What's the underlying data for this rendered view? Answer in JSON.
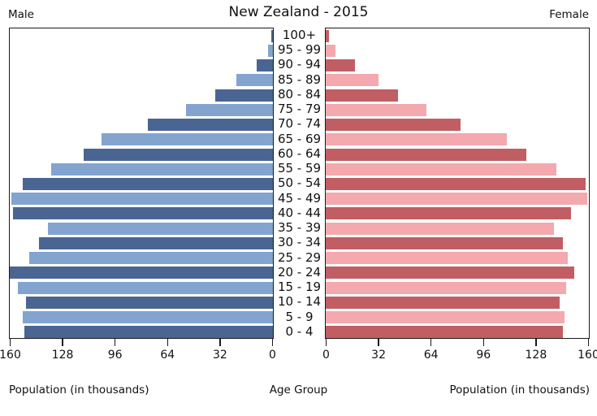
{
  "title": "New Zealand - 2015",
  "headers": {
    "male": "Male",
    "female": "Female"
  },
  "captions": {
    "left": "Population (in thousands)",
    "center": "Age Group",
    "right": "Population (in thousands)"
  },
  "chart_data": {
    "type": "bar",
    "subtype": "population-pyramid",
    "title": "New Zealand - 2015",
    "categories": [
      "100+",
      "95 - 99",
      "90 - 94",
      "85 - 89",
      "80 - 84",
      "75 - 79",
      "70 - 74",
      "65 - 69",
      "60 - 64",
      "55 - 59",
      "50 - 54",
      "45 - 49",
      "40 - 44",
      "35 - 39",
      "30 - 34",
      "25 - 29",
      "20 - 24",
      "15 - 19",
      "10 - 14",
      "5 - 9",
      "0 - 4"
    ],
    "series": [
      {
        "name": "Male",
        "side": "left",
        "values": [
          1,
          3,
          10,
          22,
          35,
          53,
          76,
          104,
          115,
          135,
          152,
          159,
          158,
          137,
          142,
          148,
          160,
          155,
          150,
          152,
          151
        ]
      },
      {
        "name": "Female",
        "side": "right",
        "values": [
          2,
          6,
          18,
          32,
          44,
          61,
          82,
          110,
          122,
          140,
          158,
          159,
          149,
          139,
          144,
          147,
          151,
          146,
          142,
          145,
          144
        ]
      }
    ],
    "xlabel_left": "Population (in thousands)",
    "xlabel_center": "Age Group",
    "xlabel_right": "Population (in thousands)",
    "ylabel": "Age Group",
    "xlim": [
      0,
      160
    ],
    "xticks": [
      0,
      32,
      64,
      96,
      128,
      160
    ],
    "grid": false,
    "legend_position": "none",
    "colors": {
      "male_dark": "#4a6591",
      "male_light": "#82a4cf",
      "female_dark": "#c15e63",
      "female_light": "#f3a9ad",
      "axis": "#1a1a1a"
    }
  }
}
